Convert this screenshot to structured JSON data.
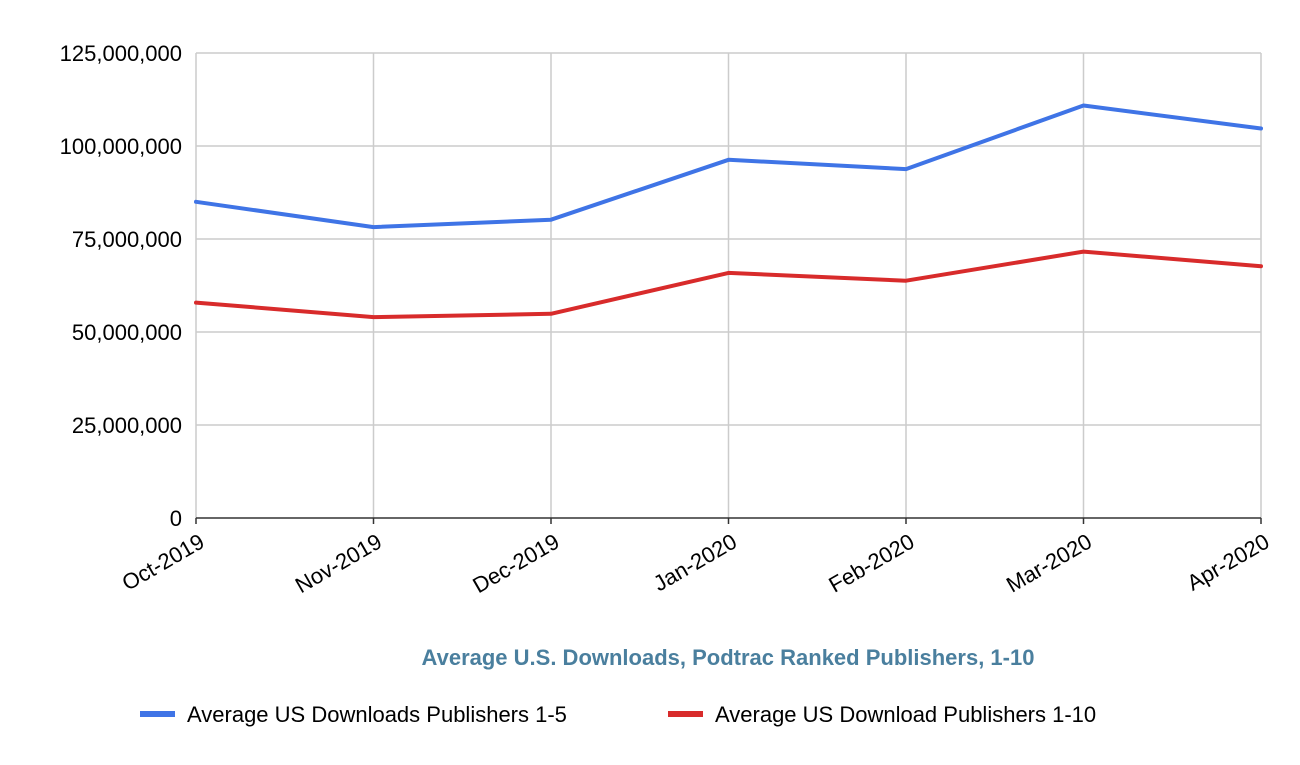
{
  "chart_data": {
    "type": "line",
    "title": "Average U.S. Downloads, Podtrac Ranked Publishers, 1-10",
    "xlabel": "",
    "ylabel": "",
    "categories": [
      "Oct-2019",
      "Nov-2019",
      "Dec-2019",
      "Jan-2020",
      "Feb-2020",
      "Mar-2020",
      "Apr-2020"
    ],
    "ylim": [
      0,
      125000000
    ],
    "yticks": [
      0,
      25000000,
      50000000,
      75000000,
      100000000,
      125000000
    ],
    "ytick_labels": [
      "0",
      "25,000,000",
      "50,000,000",
      "75,000,000",
      "100,000,000",
      "125,000,000"
    ],
    "grid": true,
    "legend_position": "bottom",
    "series": [
      {
        "name": "Average US Downloads Publishers 1-5",
        "color": "#3f74e6",
        "values": [
          85000000,
          78200000,
          80200000,
          96300000,
          93800000,
          110900000,
          104700000
        ]
      },
      {
        "name": "Average US Download Publishers 1-10",
        "color": "#d82b2b",
        "values": [
          57900000,
          54000000,
          54900000,
          65900000,
          63800000,
          71600000,
          67700000
        ]
      }
    ]
  }
}
